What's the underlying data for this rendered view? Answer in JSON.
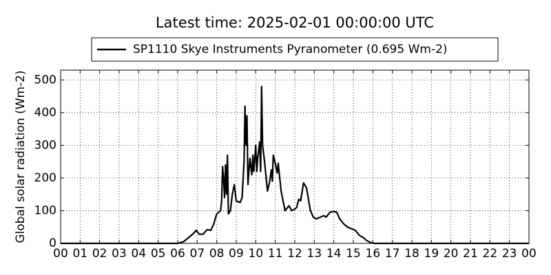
{
  "chart_data": {
    "type": "line",
    "title": "Latest time: 2025-02-01 00:00:00 UTC",
    "ylabel": "Global solar radiation (Wm-2)",
    "legend": "upper-center",
    "grid": true,
    "xlim": [
      0,
      24
    ],
    "ylim": [
      0,
      530
    ],
    "xticks": [
      {
        "value": 0,
        "label": "00"
      },
      {
        "value": 1,
        "label": "01"
      },
      {
        "value": 2,
        "label": "02"
      },
      {
        "value": 3,
        "label": "03"
      },
      {
        "value": 4,
        "label": "04"
      },
      {
        "value": 5,
        "label": "05"
      },
      {
        "value": 6,
        "label": "06"
      },
      {
        "value": 7,
        "label": "07"
      },
      {
        "value": 8,
        "label": "08"
      },
      {
        "value": 9,
        "label": "09"
      },
      {
        "value": 10,
        "label": "10"
      },
      {
        "value": 11,
        "label": "11"
      },
      {
        "value": 12,
        "label": "12"
      },
      {
        "value": 13,
        "label": "13"
      },
      {
        "value": 14,
        "label": "14"
      },
      {
        "value": 15,
        "label": "15"
      },
      {
        "value": 16,
        "label": "16"
      },
      {
        "value": 17,
        "label": "17"
      },
      {
        "value": 18,
        "label": "18"
      },
      {
        "value": 19,
        "label": "19"
      },
      {
        "value": 20,
        "label": "20"
      },
      {
        "value": 21,
        "label": "21"
      },
      {
        "value": 22,
        "label": "22"
      },
      {
        "value": 23,
        "label": "23"
      },
      {
        "value": 24,
        "label": "00"
      }
    ],
    "yticks": [
      0,
      100,
      200,
      300,
      400,
      500
    ],
    "x": [
      0,
      6.0,
      6.3,
      6.5,
      6.8,
      6.95,
      7.1,
      7.3,
      7.5,
      7.7,
      7.85,
      8.0,
      8.2,
      8.25,
      8.3,
      8.35,
      8.4,
      8.45,
      8.5,
      8.55,
      8.6,
      8.7,
      8.8,
      8.9,
      9.0,
      9.2,
      9.3,
      9.4,
      9.45,
      9.5,
      9.55,
      9.6,
      9.7,
      9.8,
      9.85,
      9.9,
      10.0,
      10.05,
      10.1,
      10.2,
      10.25,
      10.3,
      10.35,
      10.45,
      10.5,
      10.6,
      10.7,
      10.8,
      10.85,
      10.9,
      11.0,
      11.1,
      11.15,
      11.3,
      11.5,
      11.7,
      11.85,
      12.0,
      12.1,
      12.2,
      12.3,
      12.45,
      12.6,
      12.8,
      12.95,
      13.1,
      13.3,
      13.5,
      13.6,
      13.8,
      14.0,
      14.15,
      14.3,
      14.5,
      14.7,
      14.9,
      15.1,
      15.3,
      15.5,
      15.7,
      15.9,
      16.1,
      24
    ],
    "series": [
      {
        "name": "SP1110 Skye Instruments Pyranometer (0.695 Wm-2)",
        "color": "#000000",
        "values": [
          0,
          0,
          5,
          15,
          30,
          40,
          28,
          28,
          42,
          40,
          60,
          90,
          100,
          130,
          235,
          200,
          140,
          240,
          150,
          270,
          90,
          100,
          150,
          180,
          130,
          125,
          140,
          250,
          420,
          300,
          390,
          180,
          260,
          210,
          270,
          220,
          300,
          220,
          260,
          310,
          220,
          480,
          300,
          250,
          220,
          160,
          185,
          225,
          190,
          270,
          245,
          215,
          245,
          160,
          100,
          115,
          100,
          105,
          110,
          135,
          130,
          185,
          170,
          100,
          80,
          75,
          80,
          85,
          80,
          95,
          98,
          95,
          75,
          60,
          50,
          45,
          40,
          25,
          18,
          8,
          2,
          0,
          0
        ]
      }
    ]
  }
}
